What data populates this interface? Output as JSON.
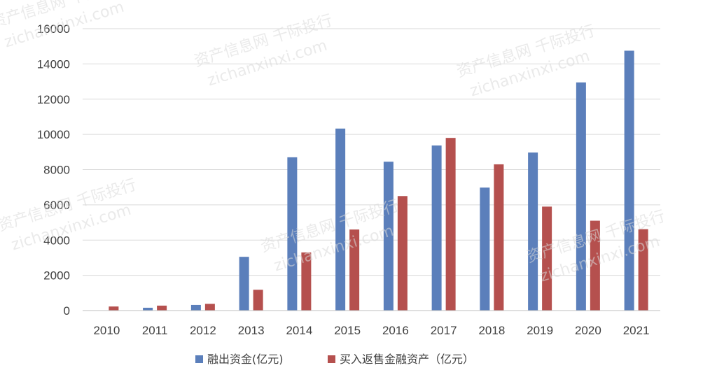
{
  "chart_data": {
    "type": "bar",
    "categories": [
      "2010",
      "2011",
      "2012",
      "2013",
      "2014",
      "2015",
      "2016",
      "2017",
      "2018",
      "2019",
      "2020",
      "2021"
    ],
    "series": [
      {
        "name": "融出资金(亿元)",
        "color": "#5b7fbb",
        "values": [
          0,
          160,
          320,
          3050,
          8700,
          10330,
          8450,
          9370,
          6980,
          8970,
          12950,
          14750
        ]
      },
      {
        "name": "买入返售金融资产（亿元）",
        "color": "#b5504e",
        "values": [
          230,
          280,
          380,
          1180,
          3300,
          4600,
          6500,
          9800,
          8300,
          5900,
          5100,
          4620
        ]
      }
    ],
    "yticks": [
      "0",
      "2000",
      "4000",
      "6000",
      "8000",
      "10000",
      "12000",
      "14000",
      "16000"
    ],
    "ylim": [
      0,
      16000
    ],
    "grid": true,
    "legend_position": "bottom",
    "title": "",
    "xlabel": "",
    "ylabel": ""
  },
  "watermark": {
    "text_cn": "资产信息网 千际投行",
    "text_url": "zichanxinxi.com"
  }
}
